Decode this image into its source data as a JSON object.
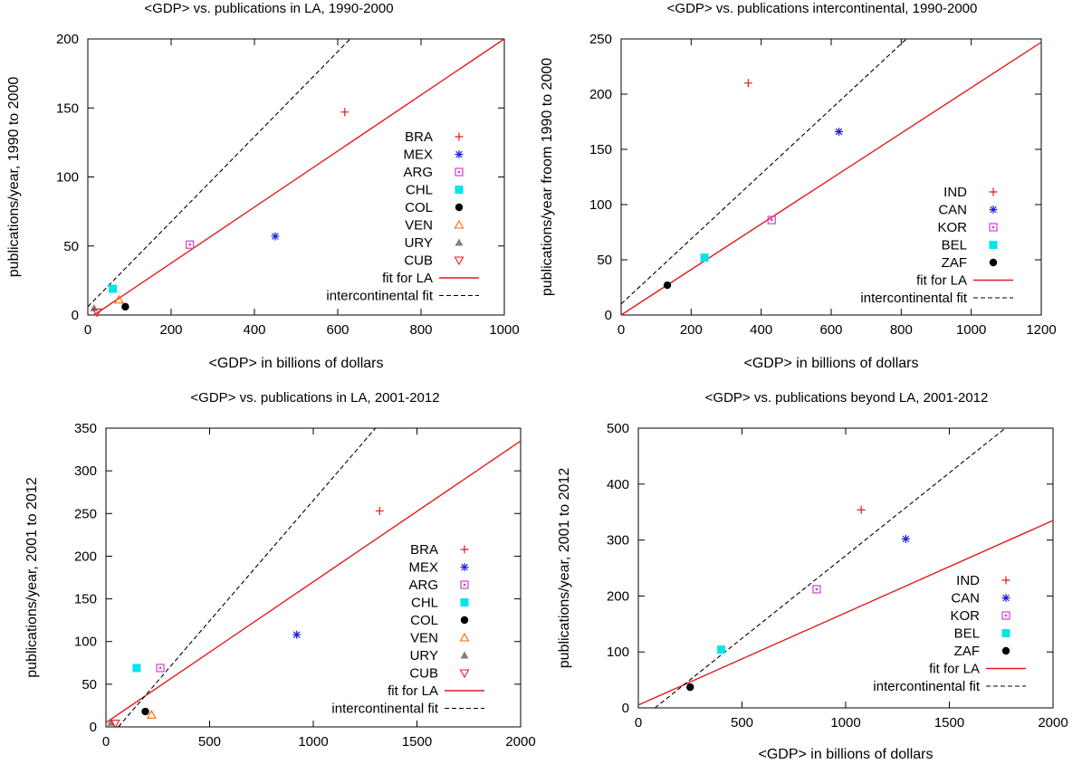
{
  "chart_data": [
    {
      "type": "scatter",
      "title": "<GDP>  vs. publications in LA, 1990-2000",
      "xlabel": "<GDP>  in billions of dollars",
      "ylabel": "publications/year, 1990 to 2000",
      "xlim": [
        0,
        1000
      ],
      "ylim": [
        0,
        200
      ],
      "xticks": [
        0,
        200,
        400,
        600,
        800,
        1000
      ],
      "yticks": [
        0,
        50,
        100,
        150,
        200
      ],
      "legend_position": "right",
      "series": [
        {
          "name": "BRA",
          "marker": "plus",
          "color": "#e41a1c",
          "points": [
            [
              617,
              147
            ]
          ]
        },
        {
          "name": "MEX",
          "marker": "star",
          "color": "#1f1fe0",
          "points": [
            [
              450,
              57
            ]
          ]
        },
        {
          "name": "ARG",
          "marker": "box",
          "color": "#d040d0",
          "points": [
            [
              245,
              51
            ]
          ]
        },
        {
          "name": "CHL",
          "marker": "filled-box",
          "color": "#00e5ee",
          "points": [
            [
              60,
              19
            ]
          ]
        },
        {
          "name": "COL",
          "marker": "filled-circle",
          "color": "#000000",
          "points": [
            [
              90,
              6
            ]
          ]
        },
        {
          "name": "VEN",
          "marker": "triangle-up",
          "color": "#ff6600",
          "points": [
            [
              75,
              11
            ]
          ]
        },
        {
          "name": "URY",
          "marker": "filled-triangle-up",
          "color": "#808080",
          "points": [
            [
              15,
              5
            ]
          ]
        },
        {
          "name": "CUB",
          "marker": "triangle-down",
          "color": "#e41a1c",
          "points": [
            [
              22,
              2
            ]
          ]
        }
      ],
      "lines": [
        {
          "name": "fit for LA",
          "style": "solid",
          "color": "#e41a1c",
          "from": [
            15,
            0
          ],
          "to": [
            1000,
            200
          ]
        },
        {
          "name": "intercontinental fit",
          "style": "dashed",
          "color": "#000000",
          "from": [
            0,
            6
          ],
          "to": [
            630,
            200
          ]
        }
      ]
    },
    {
      "type": "scatter",
      "title": "<GDP>  vs. publications intercontinental, 1990-2000",
      "xlabel": "<GDP>  in billions of dollars",
      "ylabel": "publications/year froom 1990 to 2000",
      "xlim": [
        0,
        1200
      ],
      "ylim": [
        0,
        250
      ],
      "xticks": [
        0,
        200,
        400,
        600,
        800,
        1000,
        1200
      ],
      "yticks": [
        0,
        50,
        100,
        150,
        200,
        250
      ],
      "legend_position": "right",
      "series": [
        {
          "name": "IND",
          "marker": "plus",
          "color": "#e41a1c",
          "points": [
            [
              363,
              210
            ]
          ]
        },
        {
          "name": "CAN",
          "marker": "star",
          "color": "#1f1fe0",
          "points": [
            [
              622,
              166
            ]
          ]
        },
        {
          "name": "KOR",
          "marker": "box",
          "color": "#d040d0",
          "points": [
            [
              430,
              86
            ]
          ]
        },
        {
          "name": "BEL",
          "marker": "filled-box",
          "color": "#00e5ee",
          "points": [
            [
              238,
              52
            ]
          ]
        },
        {
          "name": "ZAF",
          "marker": "filled-circle",
          "color": "#000000",
          "points": [
            [
              132,
              27
            ]
          ]
        }
      ],
      "lines": [
        {
          "name": "fit for LA",
          "style": "solid",
          "color": "#e41a1c",
          "from": [
            0,
            0
          ],
          "to": [
            1200,
            247
          ]
        },
        {
          "name": "intercontinental fit",
          "style": "dashed",
          "color": "#000000",
          "from": [
            0,
            10
          ],
          "to": [
            815,
            250
          ]
        }
      ]
    },
    {
      "type": "scatter",
      "title": "<GDP>  vs. publications in LA, 2001-2012",
      "xlabel": "",
      "ylabel": "publications/year, 2001 to 2012",
      "xlim": [
        0,
        2000
      ],
      "ylim": [
        0,
        350
      ],
      "xticks": [
        0,
        500,
        1000,
        1500,
        2000
      ],
      "yticks": [
        0,
        50,
        100,
        150,
        200,
        250,
        300,
        350
      ],
      "legend_position": "right",
      "series": [
        {
          "name": "BRA",
          "marker": "plus",
          "color": "#e41a1c",
          "points": [
            [
              1320,
              253
            ]
          ]
        },
        {
          "name": "MEX",
          "marker": "star",
          "color": "#1f1fe0",
          "points": [
            [
              920,
              108
            ]
          ]
        },
        {
          "name": "ARG",
          "marker": "box",
          "color": "#d040d0",
          "points": [
            [
              262,
              69
            ]
          ]
        },
        {
          "name": "CHL",
          "marker": "filled-box",
          "color": "#00e5ee",
          "points": [
            [
              148,
              69
            ]
          ]
        },
        {
          "name": "COL",
          "marker": "filled-circle",
          "color": "#000000",
          "points": [
            [
              190,
              18
            ]
          ]
        },
        {
          "name": "VEN",
          "marker": "triangle-up",
          "color": "#ff6600",
          "points": [
            [
              220,
              14
            ]
          ]
        },
        {
          "name": "URY",
          "marker": "filled-triangle-up",
          "color": "#808080",
          "points": [
            [
              25,
              5
            ]
          ]
        },
        {
          "name": "CUB",
          "marker": "triangle-down",
          "color": "#e41a1c",
          "points": [
            [
              45,
              4
            ]
          ]
        }
      ],
      "lines": [
        {
          "name": "fit for LA",
          "style": "solid",
          "color": "#e41a1c",
          "from": [
            0,
            5
          ],
          "to": [
            2000,
            335
          ]
        },
        {
          "name": "intercontinental fit",
          "style": "dashed",
          "color": "#000000",
          "from": [
            60,
            0
          ],
          "to": [
            1300,
            350
          ]
        }
      ]
    },
    {
      "type": "scatter",
      "title": "<GDP>  vs. publications beyond LA, 2001-2012",
      "xlabel": "<GDP>  in billions of dollars",
      "ylabel": "publications/year, 2001 to 2012",
      "xlim": [
        0,
        2000
      ],
      "ylim": [
        0,
        500
      ],
      "xticks": [
        0,
        500,
        1000,
        1500,
        2000
      ],
      "yticks": [
        0,
        100,
        200,
        300,
        400,
        500
      ],
      "legend_position": "right",
      "series": [
        {
          "name": "IND",
          "marker": "plus",
          "color": "#e41a1c",
          "points": [
            [
              1075,
              354
            ]
          ]
        },
        {
          "name": "CAN",
          "marker": "star",
          "color": "#1f1fe0",
          "points": [
            [
              1290,
              302
            ]
          ]
        },
        {
          "name": "KOR",
          "marker": "box",
          "color": "#d040d0",
          "points": [
            [
              860,
              212
            ]
          ]
        },
        {
          "name": "BEL",
          "marker": "filled-box",
          "color": "#00e5ee",
          "points": [
            [
              400,
              104
            ]
          ]
        },
        {
          "name": "ZAF",
          "marker": "filled-circle",
          "color": "#000000",
          "points": [
            [
              250,
              37
            ]
          ]
        }
      ],
      "lines": [
        {
          "name": "fit for LA",
          "style": "solid",
          "color": "#e41a1c",
          "from": [
            0,
            5
          ],
          "to": [
            2000,
            335
          ]
        },
        {
          "name": "intercontinental fit",
          "style": "dashed",
          "color": "#000000",
          "from": [
            80,
            0
          ],
          "to": [
            1770,
            500
          ]
        }
      ]
    }
  ]
}
